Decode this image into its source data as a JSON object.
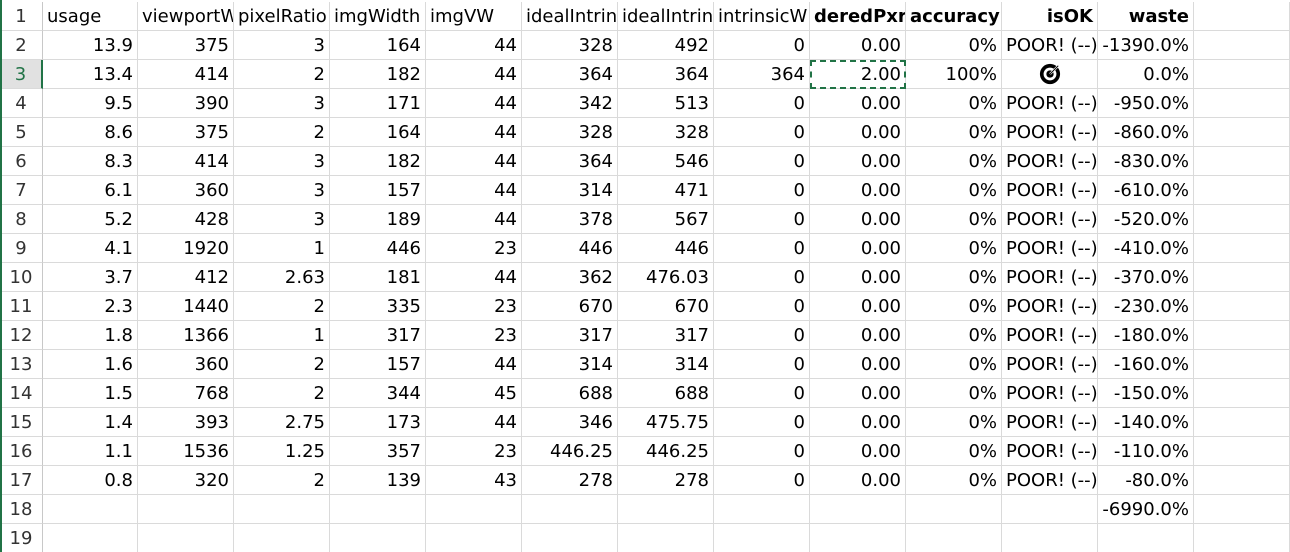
{
  "sheet": {
    "headers": [
      "usage",
      "viewportW",
      "pixelRatio",
      "imgWidth",
      "imgVW",
      "idealIntrin",
      "idealIntrin",
      "intrinsicW",
      "deredPxr",
      "accuracy",
      "isOK",
      "waste"
    ],
    "row_numbers": [
      "1",
      "2",
      "3",
      "4",
      "5",
      "6",
      "7",
      "8",
      "9",
      "10",
      "11",
      "12",
      "13",
      "14",
      "15",
      "16",
      "17",
      "18",
      "19"
    ],
    "active_row": "3",
    "rows": [
      [
        "13.9",
        "375",
        "3",
        "164",
        "44",
        "328",
        "492",
        "0",
        "0.00",
        "0%",
        "POOR! (--)",
        "-1390.0%"
      ],
      [
        "13.4",
        "414",
        "2",
        "182",
        "44",
        "364",
        "364",
        "364",
        "2.00",
        "100%",
        "",
        "0.0%"
      ],
      [
        "9.5",
        "390",
        "3",
        "171",
        "44",
        "342",
        "513",
        "0",
        "0.00",
        "0%",
        "POOR! (--)",
        "-950.0%"
      ],
      [
        "8.6",
        "375",
        "2",
        "164",
        "44",
        "328",
        "328",
        "0",
        "0.00",
        "0%",
        "POOR! (--)",
        "-860.0%"
      ],
      [
        "8.3",
        "414",
        "3",
        "182",
        "44",
        "364",
        "546",
        "0",
        "0.00",
        "0%",
        "POOR! (--)",
        "-830.0%"
      ],
      [
        "6.1",
        "360",
        "3",
        "157",
        "44",
        "314",
        "471",
        "0",
        "0.00",
        "0%",
        "POOR! (--)",
        "-610.0%"
      ],
      [
        "5.2",
        "428",
        "3",
        "189",
        "44",
        "378",
        "567",
        "0",
        "0.00",
        "0%",
        "POOR! (--)",
        "-520.0%"
      ],
      [
        "4.1",
        "1920",
        "1",
        "446",
        "23",
        "446",
        "446",
        "0",
        "0.00",
        "0%",
        "POOR! (--)",
        "-410.0%"
      ],
      [
        "3.7",
        "412",
        "2.63",
        "181",
        "44",
        "362",
        "476.03",
        "0",
        "0.00",
        "0%",
        "POOR! (--)",
        "-370.0%"
      ],
      [
        "2.3",
        "1440",
        "2",
        "335",
        "23",
        "670",
        "670",
        "0",
        "0.00",
        "0%",
        "POOR! (--)",
        "-230.0%"
      ],
      [
        "1.8",
        "1366",
        "1",
        "317",
        "23",
        "317",
        "317",
        "0",
        "0.00",
        "0%",
        "POOR! (--)",
        "-180.0%"
      ],
      [
        "1.6",
        "360",
        "2",
        "157",
        "44",
        "314",
        "314",
        "0",
        "0.00",
        "0%",
        "POOR! (--)",
        "-160.0%"
      ],
      [
        "1.5",
        "768",
        "2",
        "344",
        "45",
        "688",
        "688",
        "0",
        "0.00",
        "0%",
        "POOR! (--)",
        "-150.0%"
      ],
      [
        "1.4",
        "393",
        "2.75",
        "173",
        "44",
        "346",
        "475.75",
        "0",
        "0.00",
        "0%",
        "POOR! (--)",
        "-140.0%"
      ],
      [
        "1.1",
        "1536",
        "1.25",
        "357",
        "23",
        "446.25",
        "446.25",
        "0",
        "0.00",
        "0%",
        "POOR! (--)",
        "-110.0%"
      ],
      [
        "0.8",
        "320",
        "2",
        "139",
        "43",
        "278",
        "278",
        "0",
        "0.00",
        "0%",
        "POOR! (--)",
        "-80.0%"
      ],
      [
        "",
        "",
        "",
        "",
        "",
        "",
        "",
        "",
        "",
        "",
        "",
        "-6990.0%"
      ],
      [
        "",
        "",
        "",
        "",
        "",
        "",
        "",
        "",
        "",
        "",
        "",
        ""
      ]
    ],
    "selected_cell": {
      "row": 3,
      "col": 8
    },
    "icons": {
      "isok_row3": "target-icon"
    },
    "colors": {
      "accent": "#217346",
      "grid": "#dadada"
    }
  }
}
